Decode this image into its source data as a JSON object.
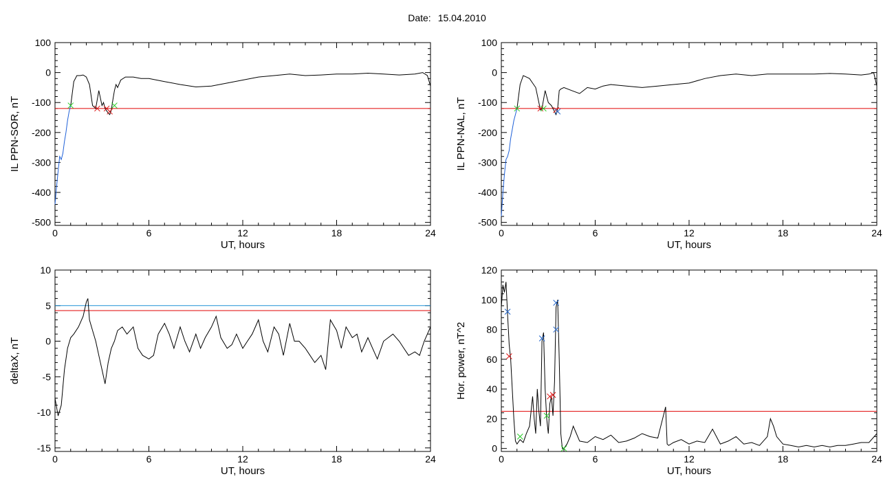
{
  "page": {
    "date_label": "Date:",
    "date_value": "15.04.2010"
  },
  "colors": {
    "trace": "#000000",
    "threshold_red": "#e00000",
    "threshold_blue": "#1f8fd6",
    "marker_green": "#22cc22",
    "marker_red": "#dd1111",
    "marker_blue": "#2266cc",
    "segment_blue": "#1e60d8"
  },
  "chart_data": [
    {
      "id": "ppn-sor",
      "type": "line",
      "xlabel": "UT, hours",
      "ylabel": "IL PPN-SOR, nT",
      "xlim": [
        0,
        24
      ],
      "ylim": [
        -510,
        100
      ],
      "xticks": [
        0,
        6,
        12,
        18,
        24
      ],
      "yticks": [
        100,
        0,
        -100,
        -200,
        -300,
        -400,
        -500
      ],
      "threshold": -120,
      "series": [
        {
          "color": "blue",
          "x": [
            0,
            0.1,
            0.2,
            0.3,
            0.4,
            0.5,
            0.6,
            0.7,
            0.8,
            0.9,
            1.0
          ],
          "y": [
            -440,
            -380,
            -330,
            -280,
            -290,
            -270,
            -230,
            -200,
            -160,
            -130,
            -110
          ]
        },
        {
          "color": "black",
          "x": [
            1.0,
            1.2,
            1.4,
            1.6,
            1.8,
            2.0,
            2.2,
            2.4,
            2.6,
            2.8,
            3.0,
            3.1,
            3.2,
            3.4,
            3.5,
            3.6,
            3.7,
            3.8,
            3.9,
            4.0,
            4.2,
            4.5,
            5.0,
            5.5,
            6.0,
            7.0,
            8.0,
            9.0,
            10.0,
            11.0,
            12.0,
            13.0,
            14.0,
            15.0,
            16.0,
            17.0,
            18.0,
            19.0,
            20.0,
            21.0,
            22.0,
            23.0,
            23.5,
            23.8,
            24.0
          ],
          "y": [
            -110,
            -30,
            -10,
            -10,
            -8,
            -15,
            -40,
            -110,
            -120,
            -60,
            -110,
            -100,
            -120,
            -135,
            -140,
            -125,
            -90,
            -60,
            -40,
            -50,
            -25,
            -15,
            -15,
            -20,
            -20,
            -30,
            -40,
            -48,
            -45,
            -35,
            -25,
            -15,
            -10,
            -5,
            -10,
            -8,
            -5,
            -5,
            -2,
            -5,
            -8,
            -5,
            0,
            -10,
            -45
          ]
        }
      ],
      "markers": [
        {
          "x": 1.0,
          "y": -110,
          "color": "green"
        },
        {
          "x": 2.7,
          "y": -120,
          "color": "red"
        },
        {
          "x": 3.3,
          "y": -120,
          "color": "red"
        },
        {
          "x": 3.5,
          "y": -130,
          "color": "red"
        },
        {
          "x": 3.8,
          "y": -110,
          "color": "green"
        }
      ]
    },
    {
      "id": "ppn-nal",
      "type": "line",
      "xlabel": "UT, hours",
      "ylabel": "IL PPN-NAL, nT",
      "xlim": [
        0,
        24
      ],
      "ylim": [
        -510,
        100
      ],
      "xticks": [
        0,
        6,
        12,
        18,
        24
      ],
      "yticks": [
        100,
        0,
        -100,
        -200,
        -300,
        -400,
        -500
      ],
      "threshold": -120,
      "series": [
        {
          "color": "blue",
          "x": [
            0,
            0.1,
            0.2,
            0.3,
            0.4,
            0.5,
            0.6,
            0.7,
            0.8,
            0.9,
            1.0
          ],
          "y": [
            -480,
            -400,
            -340,
            -290,
            -280,
            -260,
            -220,
            -190,
            -160,
            -140,
            -120
          ]
        },
        {
          "color": "black",
          "x": [
            1.0,
            1.2,
            1.4,
            1.6,
            1.8,
            2.0,
            2.2,
            2.4,
            2.5,
            2.6,
            2.8,
            3.0,
            3.2,
            3.4,
            3.5,
            3.6,
            3.7,
            3.8,
            4.0,
            4.5,
            5.0,
            5.5,
            6.0,
            6.5,
            7.0,
            8.0,
            9.0,
            10.0,
            11.0,
            12.0,
            13.0,
            14.0,
            15.0,
            16.0,
            17.0,
            18.0,
            19.0,
            20.0,
            21.0,
            22.0,
            23.0,
            23.5,
            23.8,
            24.0
          ],
          "y": [
            -120,
            -40,
            -10,
            -15,
            -20,
            -35,
            -50,
            -100,
            -125,
            -120,
            -60,
            -100,
            -110,
            -130,
            -140,
            -120,
            -60,
            -55,
            -50,
            -60,
            -70,
            -50,
            -55,
            -45,
            -40,
            -45,
            -50,
            -45,
            -40,
            -35,
            -20,
            -10,
            -5,
            -10,
            -5,
            -5,
            -5,
            -5,
            -3,
            -5,
            -8,
            -5,
            0,
            -45
          ]
        }
      ],
      "markers": [
        {
          "x": 1.0,
          "y": -120,
          "color": "green"
        },
        {
          "x": 2.5,
          "y": -120,
          "color": "red"
        },
        {
          "x": 2.7,
          "y": -120,
          "color": "green"
        },
        {
          "x": 3.5,
          "y": -125,
          "color": "red"
        },
        {
          "x": 3.6,
          "y": -130,
          "color": "blue"
        }
      ]
    },
    {
      "id": "deltax",
      "type": "line",
      "xlabel": "UT, hours",
      "ylabel": "deltaX, nT",
      "xlim": [
        0,
        24
      ],
      "ylim": [
        -15.5,
        10
      ],
      "xticks": [
        0,
        6,
        12,
        18,
        24
      ],
      "yticks": [
        10,
        5,
        0,
        -5,
        -10,
        -15
      ],
      "thresholds": [
        {
          "value": 5.0,
          "color": "blue"
        },
        {
          "value": 4.3,
          "color": "red"
        }
      ],
      "series": [
        {
          "color": "black",
          "x": [
            0,
            0.2,
            0.4,
            0.6,
            0.8,
            1.0,
            1.2,
            1.5,
            1.8,
            2.0,
            2.1,
            2.2,
            2.4,
            2.6,
            2.8,
            3.0,
            3.2,
            3.4,
            3.6,
            3.8,
            4.0,
            4.3,
            4.6,
            5.0,
            5.3,
            5.6,
            6.0,
            6.3,
            6.6,
            7.0,
            7.3,
            7.6,
            8.0,
            8.3,
            8.6,
            9.0,
            9.3,
            9.6,
            10.0,
            10.3,
            10.6,
            11.0,
            11.3,
            11.6,
            12.0,
            12.3,
            12.6,
            13.0,
            13.3,
            13.6,
            14.0,
            14.3,
            14.6,
            15.0,
            15.3,
            15.6,
            16.0,
            16.3,
            16.6,
            17.0,
            17.3,
            17.6,
            18.0,
            18.3,
            18.6,
            19.0,
            19.3,
            19.6,
            20.0,
            20.3,
            20.6,
            21.0,
            21.3,
            21.6,
            22.0,
            22.3,
            22.6,
            23.0,
            23.3,
            23.6,
            24.0
          ],
          "y": [
            -8,
            -10.5,
            -9,
            -4,
            -1,
            0.5,
            1,
            2,
            3.5,
            5.5,
            6,
            3,
            1.5,
            0,
            -2,
            -4,
            -6,
            -3,
            -1,
            0,
            1.5,
            2,
            1,
            2,
            -1,
            -2,
            -2.5,
            -2,
            1,
            2.5,
            1,
            -1,
            2,
            0,
            -1.5,
            1,
            -1,
            0.5,
            2,
            3.5,
            0.5,
            -1,
            -0.5,
            1,
            -1,
            0,
            1,
            3,
            0,
            -1.5,
            2,
            1,
            -2,
            2.5,
            0,
            0,
            -1,
            -2,
            -3,
            -2,
            -4,
            3,
            1.5,
            -1,
            2,
            0.5,
            1,
            -1.5,
            0.5,
            -1,
            -2.5,
            0,
            0.5,
            1,
            0,
            -1,
            -2,
            -1.5,
            -2,
            0,
            2
          ]
        }
      ]
    },
    {
      "id": "hor-power",
      "type": "line",
      "xlabel": "UT, hours",
      "ylabel": "Hor. power, nT^2",
      "xlim": [
        0,
        24
      ],
      "ylim": [
        -2,
        120
      ],
      "xticks": [
        0,
        6,
        12,
        18,
        24
      ],
      "yticks": [
        120,
        100,
        80,
        60,
        40,
        20,
        0
      ],
      "threshold": 25,
      "series": [
        {
          "color": "black",
          "x": [
            0,
            0.1,
            0.2,
            0.3,
            0.4,
            0.5,
            0.6,
            0.7,
            0.8,
            0.9,
            1.0,
            1.2,
            1.4,
            1.6,
            1.8,
            2.0,
            2.1,
            2.2,
            2.3,
            2.4,
            2.5,
            2.6,
            2.7,
            2.8,
            2.9,
            3.0,
            3.1,
            3.2,
            3.3,
            3.4,
            3.5,
            3.6,
            3.7,
            3.8,
            3.9,
            4.0,
            4.2,
            4.4,
            4.6,
            4.8,
            5.0,
            5.5,
            6.0,
            6.5,
            7.0,
            7.5,
            8.0,
            8.5,
            9.0,
            9.5,
            10.0,
            10.5,
            10.6,
            10.7,
            11.0,
            11.5,
            12.0,
            12.5,
            13.0,
            13.5,
            14.0,
            14.5,
            15.0,
            15.5,
            16.0,
            16.5,
            17.0,
            17.2,
            17.4,
            17.6,
            18.0,
            18.5,
            19.0,
            19.5,
            20.0,
            20.5,
            21.0,
            21.5,
            22.0,
            22.5,
            23.0,
            23.5,
            24.0
          ],
          "y": [
            95,
            110,
            105,
            112,
            90,
            70,
            60,
            40,
            20,
            5,
            3,
            6,
            4,
            10,
            15,
            35,
            20,
            10,
            40,
            25,
            15,
            72,
            78,
            40,
            20,
            10,
            30,
            35,
            22,
            45,
            95,
            100,
            60,
            10,
            0,
            0,
            3,
            8,
            15,
            10,
            5,
            4,
            8,
            6,
            9,
            4,
            5,
            7,
            10,
            8,
            7,
            28,
            3,
            2,
            4,
            6,
            3,
            5,
            4,
            13,
            3,
            5,
            8,
            3,
            4,
            2,
            8,
            20,
            15,
            8,
            3,
            2,
            1,
            2,
            1,
            2,
            1,
            2,
            2,
            3,
            4,
            4,
            10
          ]
        }
      ],
      "markers": [
        {
          "x": 0.4,
          "y": 92,
          "color": "blue"
        },
        {
          "x": 0.5,
          "y": 62,
          "color": "red"
        },
        {
          "x": 1.2,
          "y": 8,
          "color": "green"
        },
        {
          "x": 2.6,
          "y": 74,
          "color": "blue"
        },
        {
          "x": 2.9,
          "y": 22,
          "color": "green"
        },
        {
          "x": 3.1,
          "y": 35,
          "color": "red"
        },
        {
          "x": 3.3,
          "y": 36,
          "color": "red"
        },
        {
          "x": 3.5,
          "y": 98,
          "color": "blue"
        },
        {
          "x": 3.5,
          "y": 80,
          "color": "blue"
        },
        {
          "x": 4.0,
          "y": 0,
          "color": "green"
        }
      ]
    }
  ]
}
